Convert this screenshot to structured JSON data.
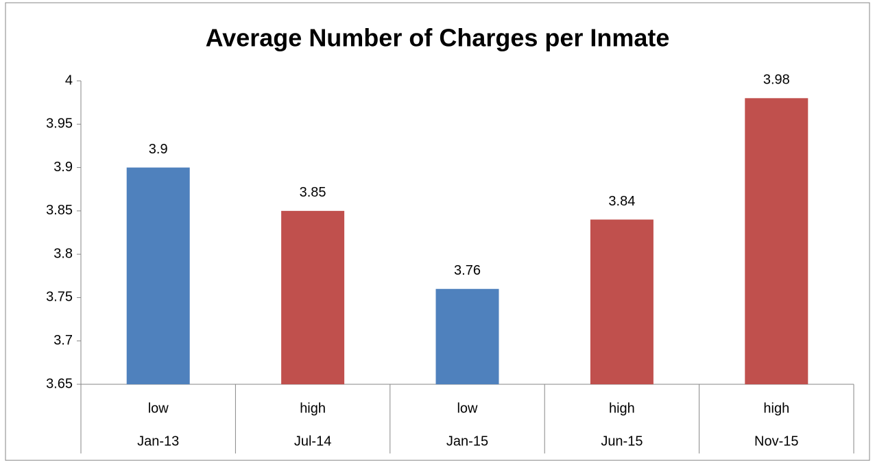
{
  "chart_data": {
    "type": "bar",
    "title": "Average Number of Charges per Inmate",
    "categories": [
      "Jan-13",
      "Jul-14",
      "Jan-15",
      "Jun-15",
      "Nov-15"
    ],
    "levels": [
      "low",
      "high",
      "low",
      "high",
      "high"
    ],
    "values": [
      3.9,
      3.85,
      3.76,
      3.84,
      3.98
    ],
    "colors": [
      "#4f81bd",
      "#c0504d",
      "#4f81bd",
      "#c0504d",
      "#c0504d"
    ],
    "ylim": [
      3.65,
      4
    ],
    "yticks": [
      3.65,
      3.7,
      3.75,
      3.8,
      3.85,
      3.9,
      3.95,
      4
    ],
    "grid": false
  }
}
